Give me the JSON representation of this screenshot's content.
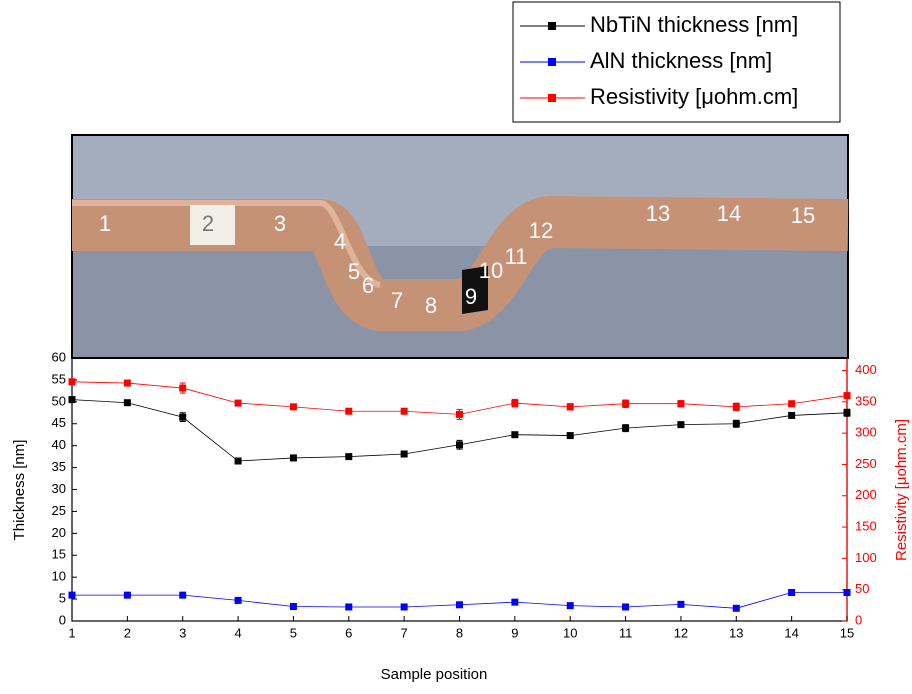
{
  "photo_labels": [
    "1",
    "2",
    "3",
    "4",
    "5",
    "6",
    "7",
    "8",
    "9",
    "10",
    "11",
    "12",
    "13",
    "14",
    "15"
  ],
  "chart_data": {
    "type": "line",
    "xlabel": "Sample position",
    "ylabel": "Thickness [nm]",
    "y2label": "Resistivity [μohm.cm]",
    "x": [
      1,
      2,
      3,
      4,
      5,
      6,
      7,
      8,
      9,
      10,
      11,
      12,
      13,
      14,
      15
    ],
    "xlim": [
      1,
      15
    ],
    "xticks": [
      1,
      2,
      3,
      4,
      5,
      6,
      7,
      8,
      9,
      10,
      11,
      12,
      13,
      14,
      15
    ],
    "ylim": [
      0,
      60
    ],
    "yticks": [
      0,
      5,
      10,
      15,
      20,
      25,
      30,
      35,
      40,
      45,
      50,
      55,
      60
    ],
    "y2lim": [
      0,
      420
    ],
    "y2ticks": [
      0,
      50,
      100,
      150,
      200,
      250,
      300,
      350,
      400
    ],
    "legend": "top-right",
    "series": [
      {
        "name": "NbTiN thickness [nm]",
        "color": "#000000",
        "values": [
          50.5,
          49.8,
          46.5,
          36.5,
          37.2,
          37.5,
          38.1,
          40.2,
          42.5,
          42.3,
          44,
          44.8,
          45,
          46.9,
          47.5
        ],
        "errors": [
          0.3,
          0.3,
          1,
          0.3,
          0.3,
          0.3,
          0.3,
          1,
          0.5,
          0.5,
          0.8,
          0.5,
          0.8,
          0.3,
          0.8
        ]
      },
      {
        "name": "AlN thickness [nm]",
        "color": "#0000ff",
        "values": [
          5.9,
          5.9,
          5.9,
          4.7,
          3.3,
          3.2,
          3.2,
          3.7,
          4.3,
          3.5,
          3.2,
          3.8,
          2.9,
          6.5,
          6.5
        ],
        "errors": [
          0.2,
          0.2,
          0.2,
          0.2,
          0.2,
          0.2,
          0.2,
          0.2,
          0.2,
          0.2,
          0.2,
          0.2,
          0.2,
          0.2,
          0.2
        ]
      },
      {
        "name": "Resistivity [μohm.cm]",
        "color": "#ff0000",
        "axis": "y2",
        "values": [
          382,
          380,
          372,
          348,
          342,
          335,
          335,
          330,
          348,
          342,
          347,
          347,
          342,
          347,
          360
        ],
        "errors": [
          3,
          3,
          8,
          3,
          3,
          3,
          3,
          8,
          6,
          5,
          6,
          5,
          6,
          3,
          3
        ]
      }
    ]
  }
}
